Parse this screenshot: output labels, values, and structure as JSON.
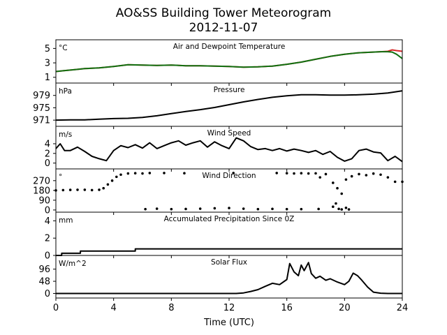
{
  "title": "AO&SS Building Tower Meteorogram",
  "subtitle": "2012-11-07",
  "xlabel": "Time (UTC)",
  "colors": {
    "line": "#000000",
    "temp": "#d62728",
    "dewpoint": "#107010"
  },
  "chart_data": [
    {
      "type": "line",
      "title": "Air and Dewpoint Temperature",
      "unit": "°C",
      "xlim": [
        0,
        24
      ],
      "ylim": [
        0.2,
        6.2
      ],
      "yticks": [
        1,
        3,
        5
      ],
      "x_ticks": [
        0,
        4,
        8,
        12,
        16,
        20,
        24
      ],
      "series": [
        {
          "name": "",
          "color_key": "temp",
          "x": [
            0,
            0.5,
            1,
            1.5,
            2,
            2.5,
            3,
            3.5,
            4,
            5,
            6,
            7,
            8,
            9,
            10,
            11,
            12,
            13,
            14,
            15,
            16,
            17,
            18,
            19,
            20,
            20.5,
            21,
            21.5,
            22,
            22.5,
            23,
            23.3,
            23.6,
            24
          ],
          "y": [
            1.8,
            1.9,
            2.0,
            2.1,
            2.2,
            2.25,
            2.3,
            2.4,
            2.5,
            2.75,
            2.7,
            2.65,
            2.7,
            2.6,
            2.6,
            2.55,
            2.5,
            2.4,
            2.45,
            2.55,
            2.8,
            3.1,
            3.5,
            3.9,
            4.2,
            4.3,
            4.4,
            4.45,
            4.5,
            4.55,
            4.6,
            4.8,
            4.7,
            4.6
          ]
        },
        {
          "name": "",
          "color_key": "dewpoint",
          "x": [
            0,
            0.5,
            1,
            1.5,
            2,
            2.5,
            3,
            3.5,
            4,
            5,
            6,
            7,
            8,
            9,
            10,
            11,
            12,
            13,
            14,
            15,
            16,
            17,
            18,
            19,
            20,
            20.5,
            21,
            21.5,
            22,
            22.5,
            23,
            23.3,
            23.6,
            24
          ],
          "y": [
            1.8,
            1.9,
            2.0,
            2.1,
            2.2,
            2.25,
            2.3,
            2.4,
            2.5,
            2.75,
            2.7,
            2.65,
            2.7,
            2.6,
            2.6,
            2.55,
            2.5,
            2.4,
            2.45,
            2.55,
            2.8,
            3.1,
            3.5,
            3.9,
            4.2,
            4.3,
            4.4,
            4.45,
            4.5,
            4.55,
            4.55,
            4.5,
            4.2,
            3.6
          ]
        }
      ]
    },
    {
      "type": "line",
      "title": "Pressure",
      "unit": "hPa",
      "xlim": [
        0,
        24
      ],
      "ylim": [
        969,
        983
      ],
      "yticks": [
        971,
        975,
        979
      ],
      "x_ticks": [
        0,
        4,
        8,
        12,
        16,
        20,
        24
      ],
      "series": [
        {
          "name": "",
          "color_key": "line",
          "x": [
            0,
            1,
            2,
            3,
            4,
            5,
            6,
            7,
            8,
            9,
            10,
            11,
            12,
            13,
            14,
            15,
            16,
            17,
            18,
            19,
            20,
            21,
            22,
            23,
            24
          ],
          "y": [
            971.0,
            971.1,
            971.1,
            971.3,
            971.5,
            971.6,
            971.9,
            972.4,
            973.1,
            973.8,
            974.4,
            975.1,
            976.0,
            976.9,
            977.7,
            978.4,
            978.9,
            979.2,
            979.2,
            979.1,
            979.1,
            979.2,
            979.4,
            979.8,
            980.5
          ]
        }
      ]
    },
    {
      "type": "line",
      "title": "Wind Speed",
      "unit": "m/s",
      "xlim": [
        0,
        24
      ],
      "ylim": [
        -1.2,
        7.6
      ],
      "yticks": [
        0,
        2,
        4
      ],
      "x_ticks": [
        0,
        4,
        8,
        12,
        16,
        20,
        24
      ],
      "series": [
        {
          "name": "",
          "color_key": "line",
          "x": [
            0,
            0.3,
            0.6,
            1,
            1.5,
            2,
            2.5,
            3,
            3.5,
            4,
            4.5,
            5,
            5.5,
            6,
            6.5,
            7,
            7.5,
            8,
            8.5,
            9,
            9.5,
            10,
            10.5,
            11,
            11.5,
            12,
            12.5,
            13,
            13.5,
            14,
            14.5,
            15,
            15.5,
            16,
            16.5,
            17,
            17.5,
            18,
            18.5,
            19,
            19.5,
            20,
            20.5,
            21,
            21.5,
            22,
            22.5,
            23,
            23.5,
            24
          ],
          "y": [
            3.0,
            4.0,
            2.6,
            2.6,
            3.3,
            2.4,
            1.4,
            0.9,
            0.5,
            2.6,
            3.6,
            3.2,
            3.8,
            3.1,
            4.2,
            3.0,
            3.6,
            4.2,
            4.6,
            3.7,
            4.2,
            4.6,
            3.3,
            4.4,
            3.6,
            3.0,
            5.2,
            4.6,
            3.4,
            2.8,
            3.0,
            2.6,
            3.0,
            2.5,
            2.9,
            2.6,
            2.2,
            2.6,
            1.8,
            2.4,
            1.2,
            0.4,
            0.9,
            2.6,
            2.9,
            2.3,
            2.1,
            0.5,
            1.4,
            0.3
          ]
        }
      ]
    },
    {
      "type": "scatter",
      "title": "Wind Direction",
      "unit": "°",
      "xlim": [
        0,
        24
      ],
      "ylim": [
        -20,
        378
      ],
      "yticks": [
        0,
        90,
        180,
        270
      ],
      "x_ticks": [
        0,
        4,
        8,
        12,
        16,
        20,
        24
      ],
      "series": [
        {
          "name": "",
          "color_key": "line",
          "x": [
            0,
            0.5,
            1,
            1.5,
            2,
            2.5,
            3,
            3.3,
            3.6,
            3.9,
            4.2,
            4.5,
            5,
            5.5,
            6,
            6.5,
            7.5,
            8.9,
            12.3,
            15.3,
            16,
            16.5,
            17,
            17.5,
            18,
            18.3,
            18.7,
            19.2,
            19.5,
            19.8,
            20.1,
            20.5,
            21,
            21.5,
            22,
            22.5,
            23,
            23.5,
            24
          ],
          "y": [
            180,
            183,
            185,
            186,
            186,
            183,
            186,
            200,
            235,
            270,
            305,
            325,
            336,
            338,
            336,
            340,
            340,
            338,
            340,
            340,
            338,
            336,
            338,
            336,
            337,
            300,
            330,
            250,
            200,
            150,
            280,
            310,
            330,
            320,
            335,
            325,
            300,
            260,
            260
          ]
        },
        {
          "name": "",
          "color_key": "line",
          "x": [
            6.2,
            7,
            8,
            9,
            10,
            11,
            12,
            13,
            14,
            15,
            16,
            17,
            18.2,
            19.2,
            19.4,
            19.6,
            19.8,
            20.1,
            20.3
          ],
          "y": [
            8,
            12,
            8,
            9,
            12,
            16,
            18,
            12,
            8,
            10,
            8,
            8,
            9,
            30,
            60,
            10,
            5,
            20,
            5
          ]
        }
      ]
    },
    {
      "type": "line",
      "title": "Accumulated Precipitation Since 0Z",
      "unit": "mm",
      "xlim": [
        0,
        24
      ],
      "ylim": [
        0,
        5
      ],
      "yticks": [
        0,
        2,
        4
      ],
      "x_ticks": [
        0,
        4,
        8,
        12,
        16,
        20,
        24
      ],
      "series": [
        {
          "name": "",
          "color_key": "line",
          "x": [
            0,
            0.4,
            0.4,
            1.7,
            1.7,
            5.5,
            5.5,
            24
          ],
          "y": [
            0,
            0,
            0.25,
            0.25,
            0.51,
            0.51,
            0.76,
            0.76
          ]
        }
      ]
    },
    {
      "type": "line",
      "title": "Solar Flux",
      "unit": "W/m^2",
      "xlim": [
        0,
        24
      ],
      "ylim": [
        -18,
        150
      ],
      "yticks": [
        0,
        48,
        96
      ],
      "x_ticks": [
        0,
        4,
        8,
        12,
        16,
        20,
        24
      ],
      "series": [
        {
          "name": "",
          "color_key": "line",
          "x": [
            0,
            12.5,
            13,
            13.5,
            14,
            14.5,
            15,
            15.5,
            16,
            16.2,
            16.5,
            16.8,
            17,
            17.2,
            17.5,
            17.7,
            18,
            18.3,
            18.7,
            19,
            19.5,
            20,
            20.3,
            20.6,
            20.9,
            21.2,
            21.6,
            22,
            22.5,
            23,
            23.5,
            24
          ],
          "y": [
            0,
            0,
            2,
            8,
            15,
            28,
            40,
            35,
            55,
            118,
            85,
            70,
            112,
            90,
            122,
            78,
            60,
            68,
            52,
            58,
            45,
            35,
            48,
            80,
            70,
            52,
            25,
            5,
            1,
            0,
            0,
            0
          ]
        }
      ]
    }
  ]
}
